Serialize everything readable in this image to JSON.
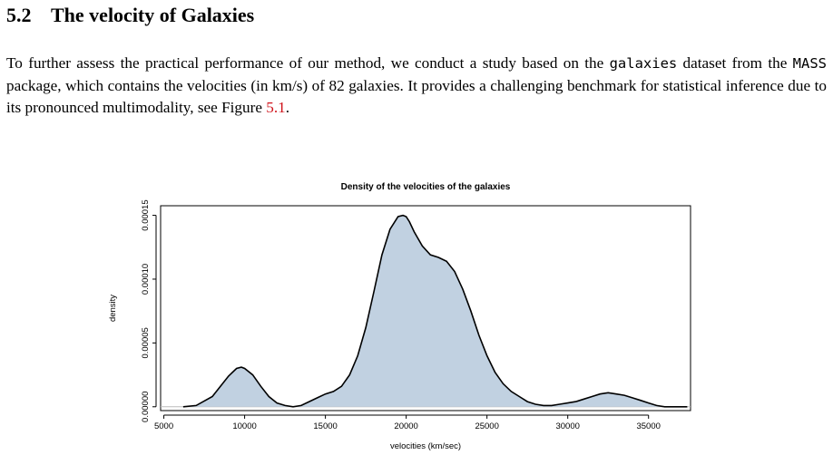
{
  "section": {
    "number": "5.2",
    "title": "The velocity of Galaxies"
  },
  "paragraph": {
    "t1": "To further assess the practical performance of our method, we conduct a study based on the ",
    "code1": "galaxies",
    "t2": " dataset from the ",
    "code2": "MASS",
    "t3": " package, which contains the velocities (in km/s) of 82 galaxies. It provides a challenging benchmark for statistical inference due to its pronounced multimodality, see Figure ",
    "ref": "5.1",
    "t4": "."
  },
  "chart_data": {
    "type": "area",
    "title": "Density of the velocities of the galaxies",
    "xlabel": "velocities (km/sec)",
    "ylabel": "density",
    "xlim": [
      4800,
      37600
    ],
    "ylim": [
      -3e-06,
      0.0001575
    ],
    "x_ticks": [
      "5000",
      "10000",
      "15000",
      "20000",
      "25000",
      "30000",
      "35000"
    ],
    "y_ticks": [
      "0.00000",
      "0.00005",
      "0.00010",
      "0.00015"
    ],
    "grid": false,
    "fill_color": "#c1d1e1",
    "line_color": "#000000",
    "baseline_color": "#bbbbbb",
    "series": [
      {
        "x": [
          6200,
          7000,
          8000,
          8500,
          9000,
          9500,
          9800,
          10000,
          10500,
          11000,
          11500,
          12000,
          12500,
          13000,
          13500,
          14000,
          14500,
          15000,
          15500,
          16000,
          16500,
          17000,
          17500,
          18000,
          18500,
          19000,
          19500,
          19800,
          20000,
          20200,
          20500,
          21000,
          21500,
          22000,
          22500,
          23000,
          23500,
          24000,
          24500,
          25000,
          25500,
          26000,
          26500,
          27000,
          27500,
          28000,
          28500,
          29000,
          29500,
          30000,
          30500,
          31000,
          31500,
          32000,
          32500,
          33000,
          33500,
          34000,
          34500,
          35000,
          35500,
          36000,
          37400
        ],
        "y": [
          0.0,
          1e-06,
          8e-06,
          1.6e-05,
          2.4e-05,
          3e-05,
          3.1e-05,
          3e-05,
          2.5e-05,
          1.6e-05,
          8e-06,
          3e-06,
          1e-06,
          0.0,
          1e-06,
          4e-06,
          7e-06,
          1e-05,
          1.2e-05,
          1.6e-05,
          2.5e-05,
          4e-05,
          6.2e-05,
          9e-05,
          0.000119,
          0.000139,
          0.000149,
          0.00015,
          0.000149,
          0.000145,
          0.000137,
          0.000126,
          0.000119,
          0.000117,
          0.000114,
          0.000106,
          9.2e-05,
          7.5e-05,
          5.6e-05,
          4e-05,
          2.7e-05,
          1.8e-05,
          1.2e-05,
          8e-06,
          4e-06,
          2e-06,
          1e-06,
          1e-06,
          2e-06,
          3e-06,
          4e-06,
          6e-06,
          8e-06,
          1e-05,
          1.1e-05,
          1e-05,
          9e-06,
          7e-06,
          5e-06,
          3e-06,
          1e-06,
          0.0,
          0.0
        ]
      }
    ]
  }
}
